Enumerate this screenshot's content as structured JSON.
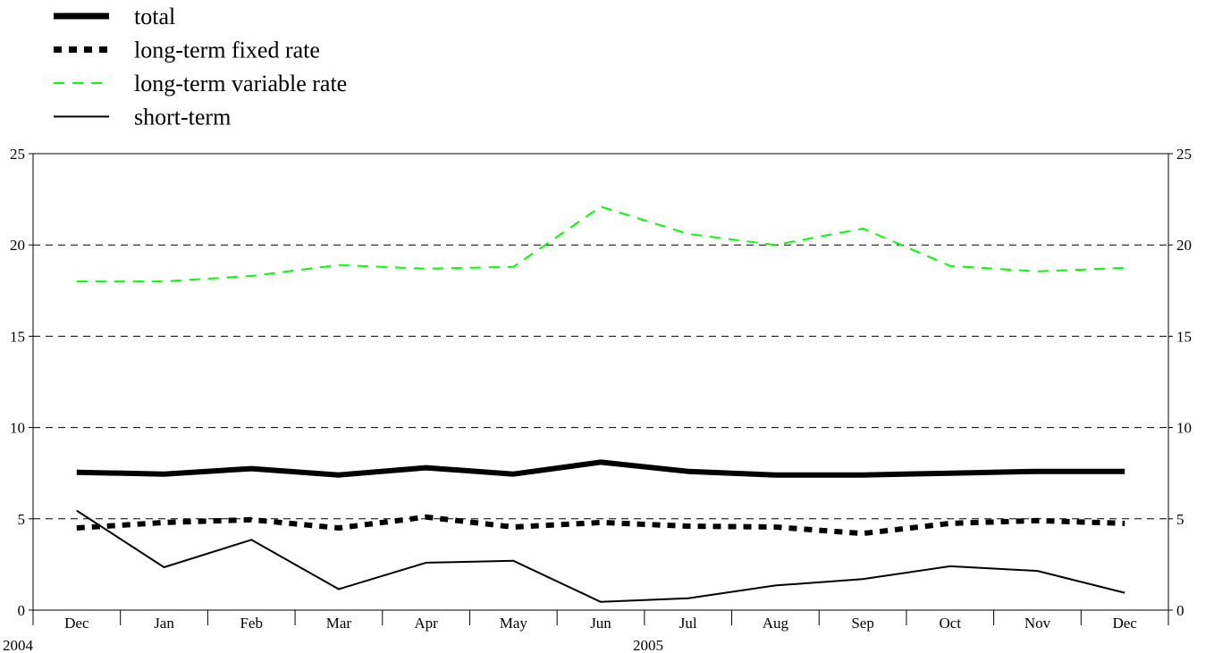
{
  "chart_data": {
    "type": "line",
    "categories": [
      "Dec",
      "Jan",
      "Feb",
      "Mar",
      "Apr",
      "May",
      "Jun",
      "Jul",
      "Aug",
      "Sep",
      "Oct",
      "Nov",
      "Dec"
    ],
    "year_labels": [
      {
        "text": "2004",
        "category_index": 0
      },
      {
        "text": "2005",
        "category_index": 6
      }
    ],
    "ylim": [
      0,
      25
    ],
    "yticks": [
      "0",
      "5",
      "10",
      "15",
      "20",
      "25"
    ],
    "grid": true,
    "legend_position": "top-left",
    "series": [
      {
        "name": "total",
        "style": "thick-solid",
        "color": "#000000",
        "values": [
          7.55,
          7.45,
          7.75,
          7.4,
          7.8,
          7.45,
          8.1,
          7.6,
          7.4,
          7.4,
          7.5,
          7.6,
          7.6
        ]
      },
      {
        "name": "long-term fixed rate",
        "style": "thick-dashed",
        "color": "#000000",
        "values": [
          4.5,
          4.8,
          4.95,
          4.5,
          5.1,
          4.55,
          4.8,
          4.6,
          4.55,
          4.2,
          4.75,
          4.9,
          4.75
        ]
      },
      {
        "name": "long-term variable rate",
        "style": "dashed",
        "color": "#00ff00",
        "values": [
          18.0,
          18.0,
          18.3,
          18.9,
          18.7,
          18.8,
          22.1,
          20.6,
          20.0,
          20.9,
          18.85,
          18.55,
          18.75
        ]
      },
      {
        "name": "short-term",
        "style": "thin-solid",
        "color": "#000000",
        "values": [
          5.45,
          2.35,
          3.85,
          1.15,
          2.6,
          2.7,
          0.45,
          0.65,
          1.35,
          1.7,
          2.4,
          2.15,
          0.95
        ]
      }
    ]
  }
}
